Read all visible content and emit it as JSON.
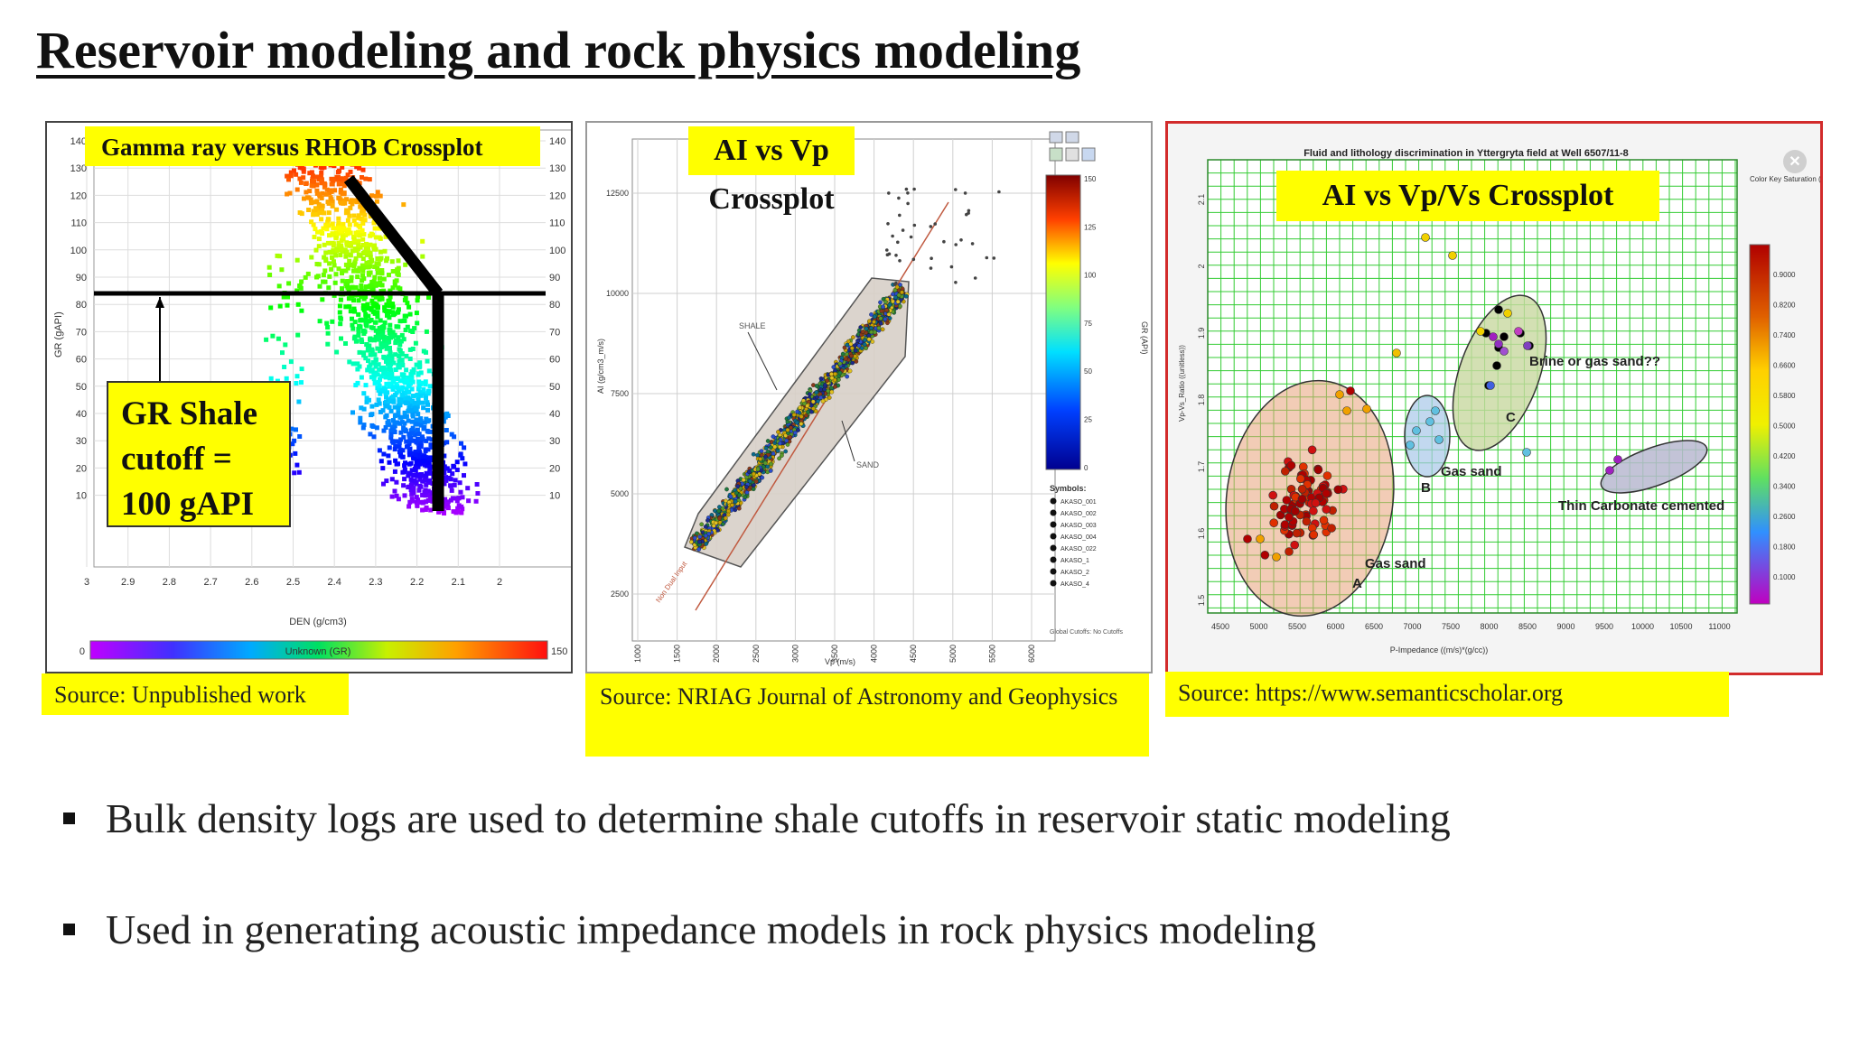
{
  "slide_title": "Reservoir modeling and rock physics modeling",
  "panel1": {
    "header": "Gamma ray versus RHOB Crossplot",
    "annotation_lines": [
      "GR Shale",
      "cutoff =",
      "100 gAPI"
    ],
    "y_label": "GR (gAPI)",
    "x_label": "DEN (g/cm3)",
    "y_ticks": [
      "140",
      "130",
      "120",
      "110",
      "100",
      "90",
      "80",
      "70",
      "60",
      "50",
      "40",
      "30",
      "20",
      "10"
    ],
    "x_ticks": [
      "3",
      "2.9",
      "2.8",
      "2.7",
      "2.6",
      "2.5",
      "2.4",
      "2.3",
      "2.2",
      "2.1",
      "2"
    ],
    "colorbar_min": "0",
    "colorbar_max": "150",
    "colorbar_label": "Unknown (GR)",
    "source": "Source: Unpublished work"
  },
  "panel2": {
    "header": "AI vs Vp Crossplot",
    "y_label": "AI (g/cm3_m/s)",
    "x_label": "Vp (m/s)",
    "y_ticks": [
      "12500",
      "10000",
      "7500",
      "5000",
      "2500"
    ],
    "x_ticks": [
      "1000",
      "1500",
      "2000",
      "2500",
      "3000",
      "3500",
      "4000",
      "4500",
      "5000",
      "5500",
      "6000"
    ],
    "label_shale": "SHALE",
    "label_sand": "SAND",
    "trend_label": "Non Dual Input",
    "colorbar_ticks": [
      "150",
      "125",
      "100",
      "75",
      "50",
      "25",
      "0"
    ],
    "colorbar_label": "GR (API)",
    "symbols_header": "Symbols:",
    "symbols": [
      "AKASO_001",
      "AKASO_002",
      "AKASO_003",
      "AKASO_004",
      "AKASO_022",
      "AKASO_1",
      "AKASO_2",
      "AKASO_4"
    ],
    "cutoff_note": "Global Cutoffs: No Cutoffs",
    "source": "Source: NRIAG Journal of  Astronomy and Geophysics"
  },
  "panel3": {
    "header": "AI vs Vp/Vs Crossplot",
    "top_title": "Fluid and lithology discrimination in Yttergryta field at Well 6507/11-8",
    "y_label": "Vp-Vs_Ratio ((unitless))",
    "x_label": "P-Impedance ((m/s)*(g/cc))",
    "x_ticks": [
      "4500",
      "5000",
      "5500",
      "6000",
      "6500",
      "7000",
      "7500",
      "8000",
      "8500",
      "9000",
      "9500",
      "10000",
      "10500",
      "11000"
    ],
    "y_ticks": [
      "2.1",
      "2",
      "1.9",
      "1.8",
      "1.7",
      "1.6",
      "1.5"
    ],
    "labels": {
      "brine": "Brine or gas sand??",
      "gas_b": "Gas sand",
      "gas_a": "Gas sand",
      "carbonate": "Thin Carbonate cemented",
      "a": "A",
      "b": "B",
      "c": "C"
    },
    "color_key_title": "Color Key Saturation (fract)",
    "color_key_values": [
      "0.9000",
      "0.8200",
      "0.7400",
      "0.6600",
      "0.5800",
      "0.5000",
      "0.4200",
      "0.3400",
      "0.2600",
      "0.1800",
      "0.1000"
    ],
    "source": "Source: https://www.semanticscholar.org"
  },
  "bullets": [
    "Bulk density logs are used to determine shale cutoffs in reservoir static modeling",
    "Used in generating acoustic impedance models in rock physics modeling"
  ],
  "colors": {
    "highlight": "#ffff00",
    "panel3_border": "#d22b2b"
  }
}
